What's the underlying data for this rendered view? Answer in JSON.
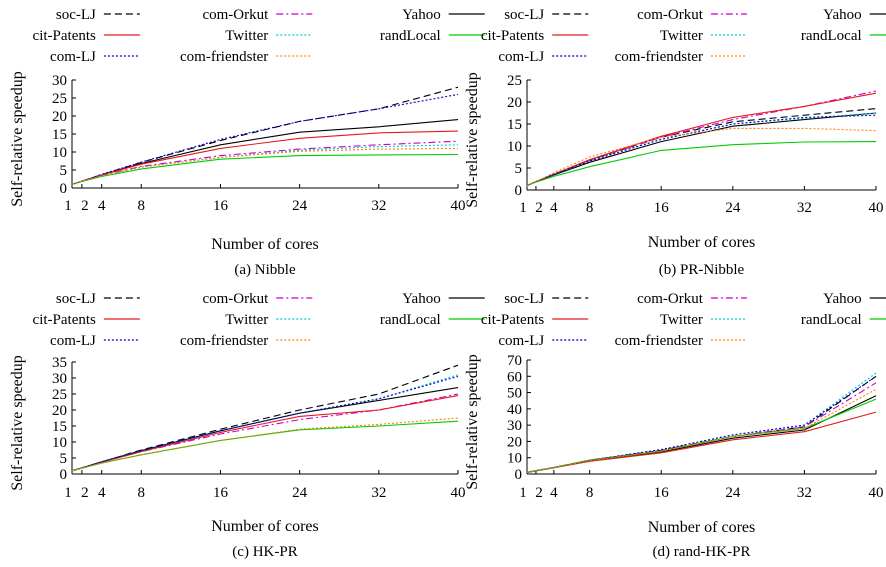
{
  "chart_data": [
    {
      "type": "line",
      "caption": "(a)  Nibble",
      "xlabel": "Number of cores",
      "ylabel": "Self-relative speedup",
      "x": [
        1,
        2,
        4,
        8,
        16,
        24,
        32,
        40
      ],
      "x_ticks": [
        "1",
        "2",
        "4",
        "8",
        "16",
        "24",
        "32",
        "40"
      ],
      "xlim": [
        1,
        40
      ],
      "ylim": [
        0,
        30
      ],
      "y_ticks": [
        "0",
        "5",
        "10",
        "15",
        "20",
        "25",
        "30"
      ],
      "series": [
        {
          "name": "soc-LJ",
          "values": [
            1,
            1.9,
            3.7,
            7.1,
            13.2,
            18.5,
            22.0,
            28.0
          ]
        },
        {
          "name": "com-Orkut",
          "values": [
            1,
            1.9,
            3.5,
            6.0,
            9.0,
            10.8,
            12.0,
            13.0
          ]
        },
        {
          "name": "Yahoo",
          "values": [
            1,
            1.9,
            3.6,
            6.8,
            12.0,
            15.5,
            17.0,
            19.0
          ]
        },
        {
          "name": "cit-Patents",
          "values": [
            1,
            1.9,
            3.6,
            6.6,
            11.0,
            13.8,
            15.3,
            15.8
          ]
        },
        {
          "name": "Twitter",
          "values": [
            1,
            1.9,
            3.4,
            5.8,
            8.5,
            10.5,
            11.5,
            12.0
          ]
        },
        {
          "name": "randLocal",
          "values": [
            1,
            1.8,
            3.2,
            5.3,
            8.0,
            9.0,
            9.2,
            9.3
          ]
        },
        {
          "name": "com-LJ",
          "values": [
            1,
            1.9,
            3.8,
            7.2,
            13.5,
            18.5,
            22.0,
            26.0
          ]
        },
        {
          "name": "com-friendster",
          "values": [
            1,
            1.9,
            3.4,
            5.8,
            8.5,
            10.2,
            10.8,
            11.0
          ]
        }
      ]
    },
    {
      "type": "line",
      "caption": "(b)  PR-Nibble",
      "xlabel": "Number of cores",
      "ylabel": "Self-relative speedup",
      "x": [
        1,
        2,
        4,
        8,
        16,
        24,
        32,
        40
      ],
      "x_ticks": [
        "1",
        "2",
        "4",
        "8",
        "16",
        "24",
        "32",
        "40"
      ],
      "xlim": [
        1,
        40
      ],
      "ylim": [
        0,
        25
      ],
      "y_ticks": [
        "0",
        "5",
        "10",
        "15",
        "20",
        "25"
      ],
      "series": [
        {
          "name": "soc-LJ",
          "values": [
            1,
            1.9,
            3.6,
            6.8,
            12.0,
            15.5,
            17.0,
            18.5
          ]
        },
        {
          "name": "com-Orkut",
          "values": [
            1,
            1.9,
            3.6,
            6.8,
            12.0,
            16.0,
            19.0,
            22.5
          ]
        },
        {
          "name": "Yahoo",
          "values": [
            1,
            1.9,
            3.4,
            6.3,
            11.0,
            14.5,
            16.0,
            17.5
          ]
        },
        {
          "name": "cit-Patents",
          "values": [
            1,
            1.9,
            3.6,
            6.9,
            12.2,
            16.5,
            19.0,
            22.0
          ]
        },
        {
          "name": "Twitter",
          "values": [
            1,
            1.9,
            3.5,
            6.6,
            11.5,
            15.0,
            16.3,
            17.5
          ]
        },
        {
          "name": "randLocal",
          "values": [
            1,
            1.8,
            3.1,
            5.3,
            9.0,
            10.3,
            10.9,
            11.0
          ]
        },
        {
          "name": "com-LJ",
          "values": [
            1,
            1.9,
            3.5,
            6.6,
            11.5,
            15.0,
            16.5,
            17.0
          ]
        },
        {
          "name": "com-friendster",
          "values": [
            1,
            1.9,
            3.9,
            7.5,
            12.0,
            14.0,
            14.0,
            13.5
          ]
        }
      ]
    },
    {
      "type": "line",
      "caption": "(c)  HK-PR",
      "xlabel": "Number of cores",
      "ylabel": "Self-relative speedup",
      "x": [
        1,
        2,
        4,
        8,
        16,
        24,
        32,
        40
      ],
      "x_ticks": [
        "1",
        "2",
        "4",
        "8",
        "16",
        "24",
        "32",
        "40"
      ],
      "xlim": [
        1,
        40
      ],
      "ylim": [
        0,
        35
      ],
      "y_ticks": [
        "0",
        "5",
        "10",
        "15",
        "20",
        "25",
        "30",
        "35"
      ],
      "series": [
        {
          "name": "soc-LJ",
          "values": [
            1,
            1.9,
            3.8,
            7.5,
            14.0,
            20.0,
            25.0,
            34.0
          ]
        },
        {
          "name": "com-Orkut",
          "values": [
            1,
            1.9,
            3.7,
            7.0,
            12.5,
            17.0,
            20.0,
            25.0
          ]
        },
        {
          "name": "Yahoo",
          "values": [
            1,
            1.9,
            3.8,
            7.3,
            13.5,
            19.0,
            23.0,
            27.0
          ]
        },
        {
          "name": "cit-Patents",
          "values": [
            1,
            1.9,
            3.7,
            7.0,
            13.0,
            18.0,
            20.0,
            24.5
          ]
        },
        {
          "name": "Twitter",
          "values": [
            1,
            1.9,
            3.8,
            7.3,
            13.5,
            19.0,
            23.5,
            31.0
          ]
        },
        {
          "name": "randLocal",
          "values": [
            1,
            1.8,
            3.4,
            6.0,
            10.5,
            13.8,
            15.0,
            16.5
          ]
        },
        {
          "name": "com-LJ",
          "values": [
            1,
            1.9,
            3.8,
            7.3,
            13.5,
            19.0,
            23.5,
            30.5
          ]
        },
        {
          "name": "com-friendster",
          "values": [
            1,
            1.8,
            3.4,
            6.0,
            10.5,
            14.0,
            15.5,
            17.5
          ]
        }
      ]
    },
    {
      "type": "line",
      "caption": "(d)  rand-HK-PR",
      "xlabel": "Number of cores",
      "ylabel": "Self-relative speedup",
      "x": [
        1,
        2,
        4,
        8,
        16,
        24,
        32,
        40
      ],
      "x_ticks": [
        "1",
        "2",
        "4",
        "8",
        "16",
        "24",
        "32",
        "40"
      ],
      "xlim": [
        1,
        40
      ],
      "ylim": [
        0,
        70
      ],
      "y_ticks": [
        "0",
        "10",
        "20",
        "30",
        "40",
        "50",
        "60",
        "70"
      ],
      "series": [
        {
          "name": "soc-LJ",
          "values": [
            1,
            2,
            4,
            8.5,
            14.5,
            23,
            29,
            60
          ]
        },
        {
          "name": "com-Orkut",
          "values": [
            1,
            2,
            4,
            8.5,
            14.5,
            23,
            29,
            56
          ]
        },
        {
          "name": "Yahoo",
          "values": [
            1,
            2,
            4,
            8,
            13.5,
            22,
            27,
            48
          ]
        },
        {
          "name": "cit-Patents",
          "values": [
            1,
            1.9,
            3.8,
            7.8,
            13,
            21,
            26,
            38
          ]
        },
        {
          "name": "Twitter",
          "values": [
            1,
            2,
            4,
            8.5,
            15,
            24,
            30,
            62
          ]
        },
        {
          "name": "randLocal",
          "values": [
            1,
            2,
            4,
            8.5,
            14,
            23,
            28,
            46
          ]
        },
        {
          "name": "com-LJ",
          "values": [
            1,
            2,
            4,
            8.5,
            15,
            24,
            30,
            60
          ]
        },
        {
          "name": "com-friendster",
          "values": [
            1,
            2,
            4,
            8.3,
            14,
            23,
            28,
            52
          ]
        }
      ]
    }
  ],
  "legend": {
    "placement": "top",
    "entries": [
      {
        "name": "soc-LJ",
        "color": "#000000",
        "dash": "dashed"
      },
      {
        "name": "com-Orkut",
        "color": "#cc00cc",
        "dash": "dashdot"
      },
      {
        "name": "Yahoo",
        "color": "#000000",
        "dash": "solid"
      },
      {
        "name": "cit-Patents",
        "color": "#e41a1c",
        "dash": "solid"
      },
      {
        "name": "Twitter",
        "color": "#00cccc",
        "dash": "dotted"
      },
      {
        "name": "randLocal",
        "color": "#00cc00",
        "dash": "solid"
      },
      {
        "name": "com-LJ",
        "color": "#0000cc",
        "dash": "dotted"
      },
      {
        "name": "com-friendster",
        "color": "#ff7f0e",
        "dash": "dotted"
      }
    ]
  }
}
